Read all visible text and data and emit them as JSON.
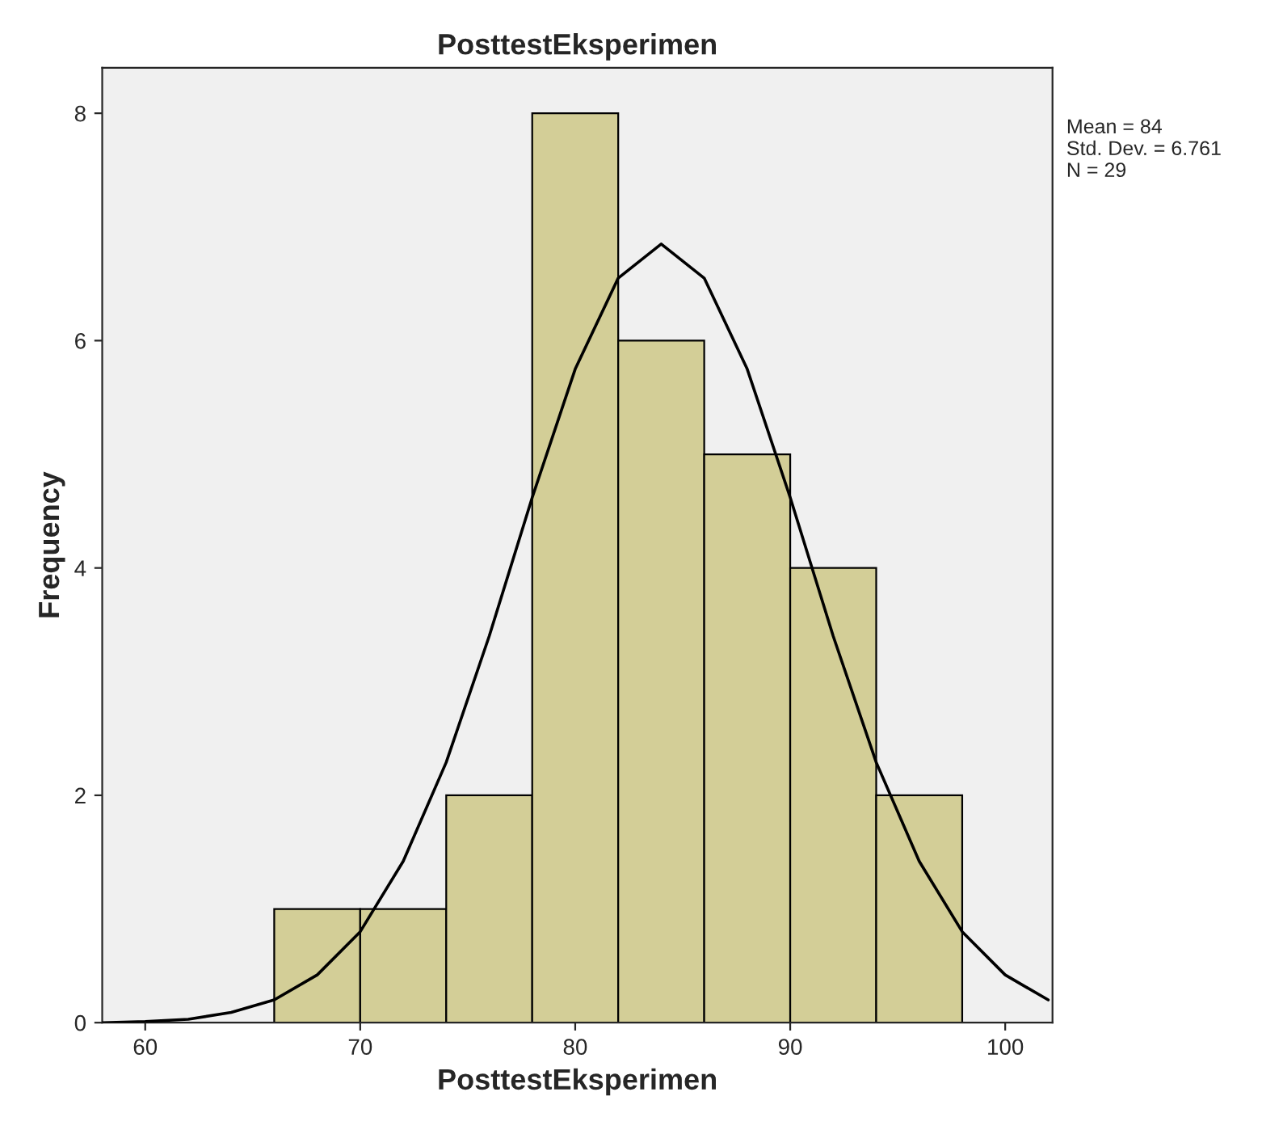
{
  "chart_data": {
    "type": "histogram",
    "title": "PosttestEksperimen",
    "xlabel": "PosttestEksperimen",
    "ylabel": "Frequency",
    "bins": [
      66,
      70,
      74,
      78,
      82,
      86,
      90,
      94,
      98
    ],
    "series": [
      {
        "color": "#d3ce97",
        "values": [
          1,
          1,
          2,
          8,
          6,
          5,
          4,
          2
        ]
      },
      {
        "type": "line",
        "color": "#000000",
        "x": [
          58,
          60,
          62,
          64,
          66,
          68,
          70,
          72,
          74,
          76,
          78,
          80,
          82,
          84,
          86,
          88,
          90,
          92,
          94,
          96,
          98,
          100,
          102
        ],
        "values": [
          0.0,
          0.01,
          0.03,
          0.09,
          0.2,
          0.42,
          0.8,
          1.42,
          2.29,
          3.4,
          4.62,
          5.75,
          6.55,
          6.85,
          6.55,
          5.75,
          4.62,
          3.4,
          2.29,
          1.42,
          0.8,
          0.42,
          0.2
        ]
      }
    ],
    "xlim": [
      58,
      102.2
    ],
    "ylim": [
      0,
      8.4
    ],
    "xticks": [
      60,
      70,
      80,
      90,
      100
    ],
    "yticks": [
      0,
      2,
      4,
      6,
      8
    ],
    "grid": false,
    "marker": "none",
    "line_style": "solid",
    "annotations": [
      "Mean = 84\nStd. Dev. = 6.761\nN = 29"
    ]
  }
}
